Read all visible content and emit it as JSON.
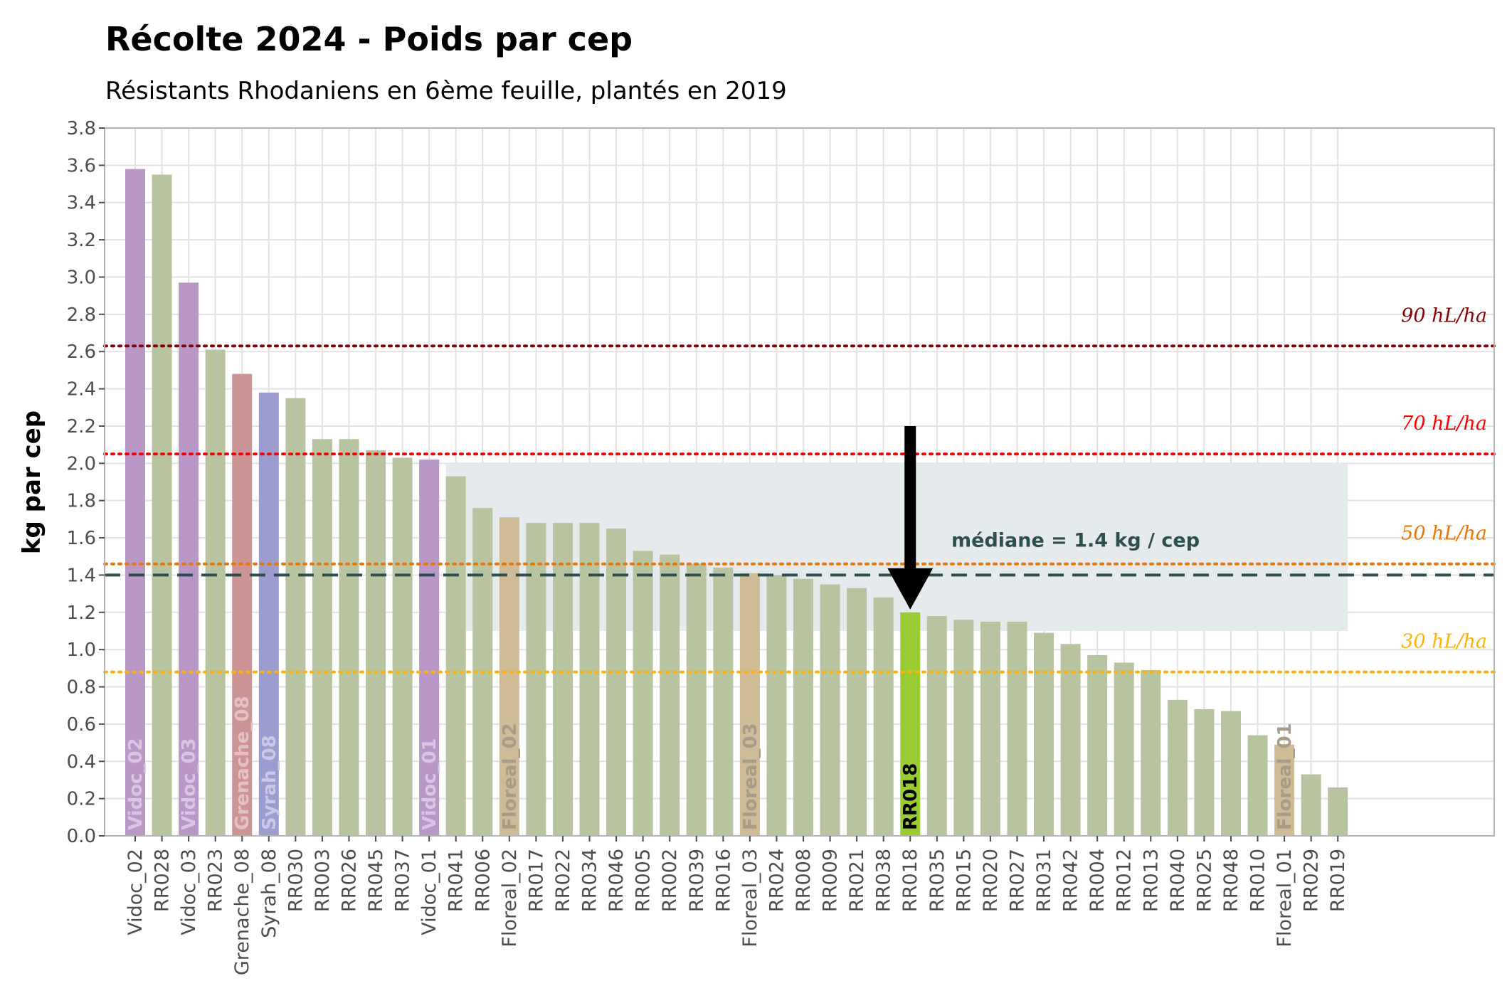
{
  "chart_data": {
    "type": "bar",
    "title": "Récolte 2024 - Poids par cep",
    "subtitle": "Résistants Rhodaniens en 6ème feuille, plantés en 2019",
    "ylabel": "kg par cep",
    "ylim": [
      0,
      3.8
    ],
    "yticks": [
      "0.0",
      "0.2",
      "0.4",
      "0.6",
      "0.8",
      "1.0",
      "1.2",
      "1.4",
      "1.6",
      "1.8",
      "2.0",
      "2.2",
      "2.4",
      "2.6",
      "2.8",
      "3.0",
      "3.2",
      "3.4",
      "3.6",
      "3.8"
    ],
    "grid": true,
    "categories": [
      "Vidoc_02",
      "RR028",
      "Vidoc_03",
      "RR023",
      "Grenache_08",
      "Syrah_08",
      "RR030",
      "RR003",
      "RR026",
      "RR045",
      "RR037",
      "Vidoc_01",
      "RR041",
      "RR006",
      "Floreal_02",
      "RR017",
      "RR022",
      "RR034",
      "RR046",
      "RR005",
      "RR002",
      "RR039",
      "RR016",
      "Floreal_03",
      "RR024",
      "RR008",
      "RR009",
      "RR021",
      "RR038",
      "RR018",
      "RR035",
      "RR015",
      "RR020",
      "RR027",
      "RR031",
      "RR042",
      "RR004",
      "RR012",
      "RR013",
      "RR040",
      "RR025",
      "RR048",
      "RR010",
      "Floreal_01",
      "RR029",
      "RR019"
    ],
    "values": [
      3.58,
      3.55,
      2.97,
      2.61,
      2.48,
      2.38,
      2.35,
      2.13,
      2.13,
      2.07,
      2.03,
      2.02,
      1.93,
      1.76,
      1.71,
      1.68,
      1.68,
      1.68,
      1.65,
      1.53,
      1.51,
      1.46,
      1.44,
      1.41,
      1.4,
      1.38,
      1.35,
      1.33,
      1.28,
      1.2,
      1.18,
      1.16,
      1.15,
      1.15,
      1.09,
      1.03,
      0.97,
      0.93,
      0.89,
      0.73,
      0.68,
      0.67,
      0.54,
      0.49,
      0.33,
      0.26
    ],
    "bar_colors": {
      "default": "#b8c39f",
      "Vidoc": "#b998c8",
      "Grenache": "#cc9494",
      "Syrah": "#9c9ccf",
      "Floreal": "#cfbb96",
      "highlight": "#99cc33"
    },
    "highlight": "RR018",
    "bar_labels": [
      {
        "category": "Vidoc_02",
        "text": "Vidoc_02",
        "color": "#d9c6e2"
      },
      {
        "category": "Vidoc_03",
        "text": "Vidoc_03",
        "color": "#d9c6e2"
      },
      {
        "category": "Grenache_08",
        "text": "Grenache_08",
        "color": "#e4c2c2"
      },
      {
        "category": "Syrah_08",
        "text": "Syrah_08",
        "color": "#c9c9e6"
      },
      {
        "category": "Vidoc_01",
        "text": "Vidoc_01",
        "color": "#d9c6e2"
      },
      {
        "category": "Floreal_02",
        "text": "Floreal_02",
        "color": "#a89c86"
      },
      {
        "category": "Floreal_03",
        "text": "Floreal_03",
        "color": "#a89c86"
      },
      {
        "category": "RR018",
        "text": "RR018",
        "color": "#000000"
      },
      {
        "category": "Floreal_01",
        "text": "Floreal_01",
        "color": "#a89c86"
      }
    ],
    "shaded_band": {
      "y": [
        1.1,
        2.0
      ],
      "from_category": "RR041",
      "to_category": "RR019",
      "color": "#e5eaec"
    },
    "median": {
      "value": 1.4,
      "label": "médiane = 1.4 kg / cep",
      "color": "#2f4f4f"
    },
    "arrow": {
      "category": "RR018",
      "from_y": 2.2,
      "to_y": 1.2
    },
    "reference_lines": [
      {
        "label": "90 hL/ha",
        "value": 2.63,
        "color": "#8b0000"
      },
      {
        "label": "70 hL/ha",
        "value": 2.05,
        "color": "#ff0000"
      },
      {
        "label": "50 hL/ha",
        "value": 1.46,
        "color": "#ee7600"
      },
      {
        "label": "30 hL/ha",
        "value": 0.88,
        "color": "#ffb300"
      }
    ]
  }
}
